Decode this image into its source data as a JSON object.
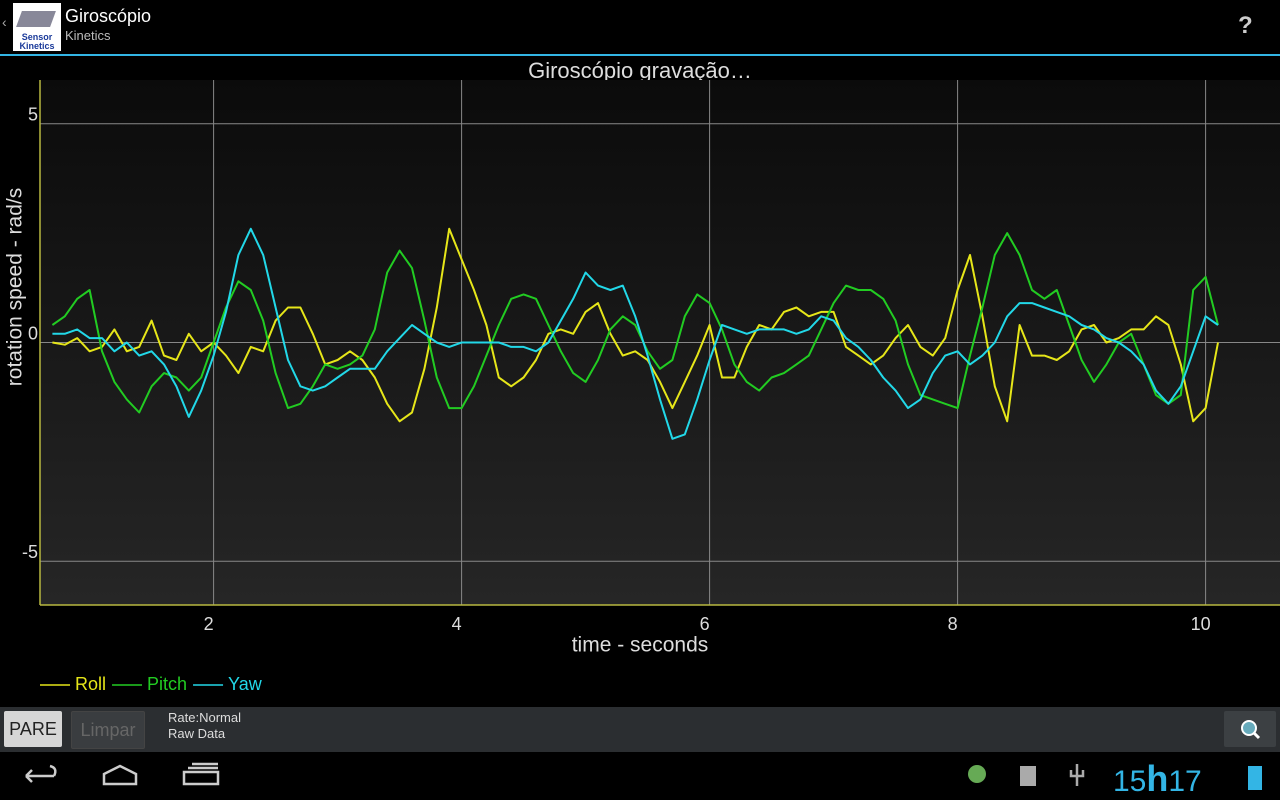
{
  "app_bar": {
    "title": "Giroscópio",
    "subtitle": "Kinetics",
    "icon_text": "Sensor Kinetics",
    "help": "?"
  },
  "chart_data": {
    "type": "line",
    "title": "Giroscópio gravação…",
    "x_label": "time - seconds",
    "y_label": "rotation speed - rad/s",
    "x": [
      0.7,
      0.8,
      0.9,
      1.0,
      1.1,
      1.2,
      1.3,
      1.4,
      1.5,
      1.6,
      1.7,
      1.8,
      1.9,
      2.0,
      2.1,
      2.2,
      2.3,
      2.4,
      2.5,
      2.6,
      2.7,
      2.8,
      2.9,
      3.0,
      3.1,
      3.2,
      3.3,
      3.4,
      3.5,
      3.6,
      3.7,
      3.8,
      3.9,
      4.0,
      4.1,
      4.2,
      4.3,
      4.4,
      4.5,
      4.6,
      4.7,
      4.8,
      4.9,
      5.0,
      5.1,
      5.2,
      5.3,
      5.4,
      5.5,
      5.6,
      5.7,
      5.8,
      5.9,
      6.0,
      6.1,
      6.2,
      6.3,
      6.4,
      6.5,
      6.6,
      6.7,
      6.8,
      6.9,
      7.0,
      7.1,
      7.2,
      7.3,
      7.4,
      7.5,
      7.6,
      7.7,
      7.8,
      7.9,
      8.0,
      8.1,
      8.2,
      8.3,
      8.4,
      8.5,
      8.6,
      8.7,
      8.8,
      8.9,
      9.0,
      9.1,
      9.2,
      9.3,
      9.4,
      9.5,
      9.6,
      9.7,
      9.8,
      9.9,
      10.0,
      10.1
    ],
    "series": [
      {
        "name": "Roll",
        "color": "#e6e619",
        "values": [
          0,
          -0.05,
          0.1,
          -0.2,
          -0.1,
          0.3,
          -0.2,
          -0.1,
          0.5,
          -0.3,
          -0.4,
          0.2,
          -0.2,
          0,
          -0.3,
          -0.7,
          -0.1,
          -0.2,
          0.5,
          0.8,
          0.8,
          0.2,
          -0.5,
          -0.4,
          -0.2,
          -0.4,
          -0.8,
          -1.4,
          -1.8,
          -1.6,
          -0.6,
          0.8,
          2.6,
          1.9,
          1.2,
          0.4,
          -0.8,
          -1.0,
          -0.8,
          -0.4,
          0.2,
          0.3,
          0.2,
          0.7,
          0.9,
          0.2,
          -0.3,
          -0.2,
          -0.4,
          -0.9,
          -1.5,
          -0.9,
          -0.3,
          0.4,
          -0.8,
          -0.8,
          -0.1,
          0.4,
          0.3,
          0.7,
          0.8,
          0.6,
          0.7,
          0.7,
          -0.1,
          -0.3,
          -0.5,
          -0.3,
          0.1,
          0.4,
          -0.1,
          -0.3,
          0.1,
          1.2,
          2.0,
          0.6,
          -1.0,
          -1.8,
          0.4,
          -0.3,
          -0.3,
          -0.4,
          -0.2,
          0.3,
          0.4,
          0,
          0.1,
          0.3,
          0.3,
          0.6,
          0.4,
          -0.5,
          -1.8,
          -1.5,
          0
        ]
      },
      {
        "name": "Pitch",
        "color": "#22cc22",
        "values": [
          0.4,
          0.6,
          1.0,
          1.2,
          -0.2,
          -0.9,
          -1.3,
          -1.6,
          -1.0,
          -0.7,
          -0.8,
          -1.1,
          -0.8,
          0,
          0.8,
          1.4,
          1.2,
          0.5,
          -0.7,
          -1.5,
          -1.4,
          -1.0,
          -0.5,
          -0.6,
          -0.5,
          -0.3,
          0.3,
          1.6,
          2.1,
          1.7,
          0.5,
          -0.8,
          -1.5,
          -1.5,
          -1.0,
          -0.3,
          0.4,
          1.0,
          1.1,
          1.0,
          0.4,
          -0.2,
          -0.7,
          -0.9,
          -0.4,
          0.3,
          0.6,
          0.4,
          -0.2,
          -0.6,
          -0.4,
          0.6,
          1.1,
          0.9,
          0.3,
          -0.5,
          -0.9,
          -1.1,
          -0.8,
          -0.7,
          -0.5,
          -0.3,
          0.3,
          0.9,
          1.3,
          1.2,
          1.2,
          1.0,
          0.5,
          -0.5,
          -1.2,
          -1.3,
          -1.4,
          -1.5,
          -0.3,
          0.8,
          2.0,
          2.5,
          2.0,
          1.2,
          1.0,
          1.2,
          0.4,
          -0.4,
          -0.9,
          -0.5,
          0,
          0.2,
          -0.5,
          -1.2,
          -1.4,
          -1.2,
          1.2,
          1.5,
          0.4
        ]
      },
      {
        "name": "Yaw",
        "color": "#22d8e8",
        "values": [
          0.2,
          0.2,
          0.3,
          0.1,
          0.1,
          -0.2,
          0,
          -0.3,
          -0.2,
          -0.5,
          -1.0,
          -1.7,
          -1.1,
          -0.3,
          0.7,
          2.0,
          2.6,
          2.0,
          0.8,
          -0.4,
          -1.0,
          -1.1,
          -1.0,
          -0.8,
          -0.6,
          -0.6,
          -0.6,
          -0.2,
          0.1,
          0.4,
          0.2,
          0,
          -0.1,
          0,
          0,
          0,
          0,
          -0.1,
          -0.1,
          -0.2,
          0,
          0.5,
          1.0,
          1.6,
          1.3,
          1.2,
          1.3,
          0.6,
          -0.3,
          -1.3,
          -2.2,
          -2.1,
          -1.3,
          -0.4,
          0.4,
          0.3,
          0.2,
          0.3,
          0.3,
          0.3,
          0.2,
          0.3,
          0.6,
          0.5,
          0.1,
          -0.1,
          -0.4,
          -0.8,
          -1.1,
          -1.5,
          -1.3,
          -0.7,
          -0.3,
          -0.2,
          -0.5,
          -0.3,
          0,
          0.6,
          0.9,
          0.9,
          0.8,
          0.7,
          0.6,
          0.4,
          0.3,
          0.1,
          0,
          -0.2,
          -0.5,
          -1.1,
          -1.4,
          -1.0,
          -0.2,
          0.6,
          0.4
        ]
      }
    ],
    "xlim": [
      0.6,
      10.6
    ],
    "xticks": [
      2,
      4,
      6,
      8,
      10
    ],
    "ylim": [
      -6,
      6
    ],
    "yticks": [
      -5,
      0,
      5
    ],
    "grid": true,
    "legend": "bottom-left"
  },
  "toolbar": {
    "stop": "PARE",
    "clear": "Limpar",
    "rate": "Rate:Normal",
    "mode": "Raw Data"
  },
  "status_bar": {
    "hour": "15",
    "separator": "h",
    "minute": "17"
  }
}
